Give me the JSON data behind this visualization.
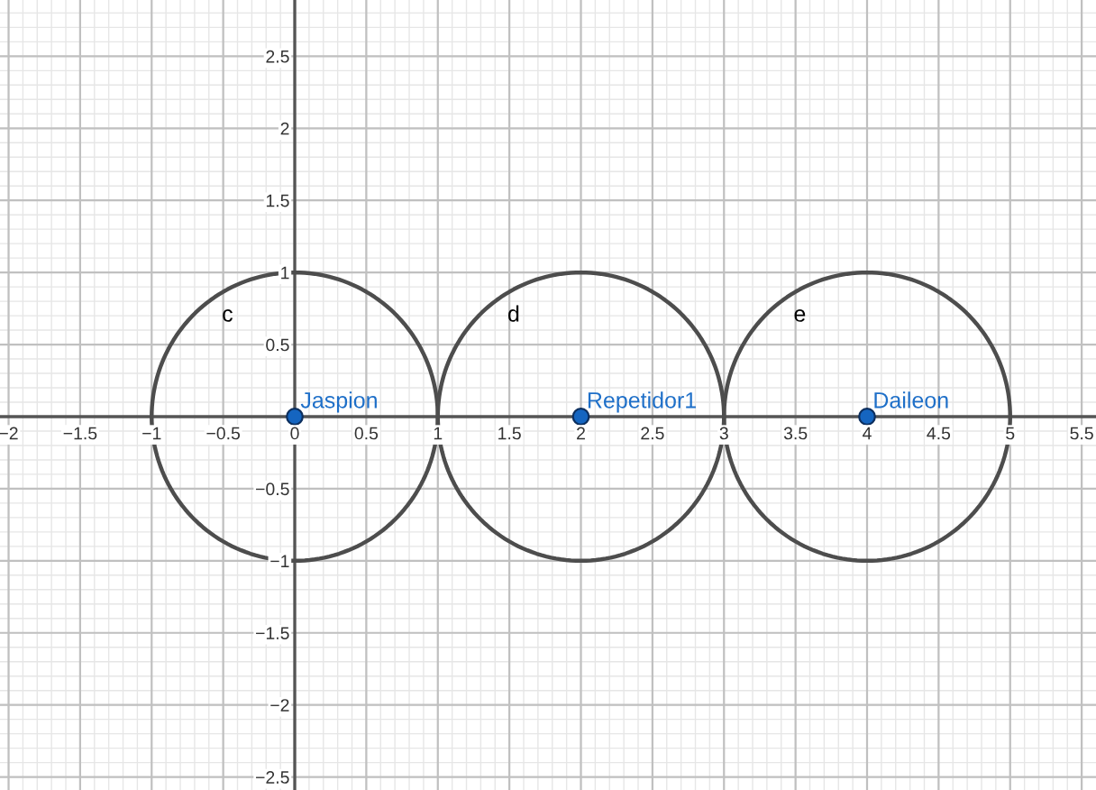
{
  "chart_data": {
    "type": "scatter",
    "xlim": [
      -2.06,
      5.6
    ],
    "ylim": [
      -2.59,
      2.89
    ],
    "xticks": [
      {
        "value": -2,
        "label": "−2"
      },
      {
        "value": -1.5,
        "label": "−1.5"
      },
      {
        "value": -1,
        "label": "−1"
      },
      {
        "value": -0.5,
        "label": "−0.5"
      },
      0,
      0.5,
      1,
      1.5,
      2,
      2.5,
      3,
      3.5,
      4,
      4.5,
      5,
      5.5
    ],
    "yticks": [
      {
        "value": -2.5,
        "label": "−2.5"
      },
      {
        "value": -2,
        "label": "−2"
      },
      {
        "value": -1.5,
        "label": "−1.5"
      },
      {
        "value": -1,
        "label": "−1"
      },
      {
        "value": -0.5,
        "label": "−0.5"
      },
      0.5,
      1,
      1.5,
      2,
      2.5
    ],
    "grid": true,
    "legend": false,
    "annotations": [
      "c",
      "d",
      "e"
    ],
    "series": [
      {
        "name": "Jaspion",
        "color": "#1565c0",
        "x": [
          0
        ],
        "values": [
          0
        ]
      },
      {
        "name": "Repetidor1",
        "color": "#1565c0",
        "x": [
          2
        ],
        "values": [
          0
        ]
      },
      {
        "name": "Daileon",
        "color": "#1565c0",
        "x": [
          4
        ],
        "values": [
          0
        ]
      }
    ]
  }
}
